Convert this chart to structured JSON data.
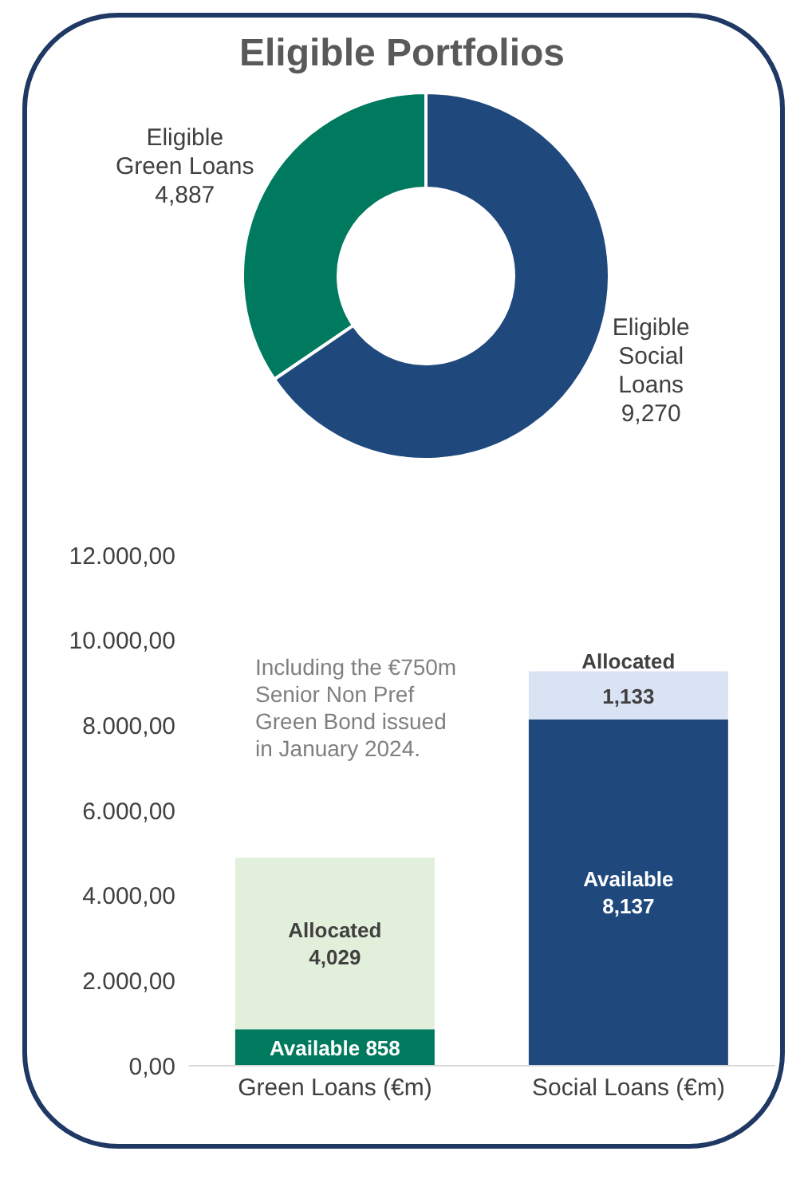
{
  "chart_data": [
    {
      "type": "donut",
      "title": "Eligible Portfolios",
      "categories": [
        "Eligible Green Loans",
        "Eligible Social Loans"
      ],
      "values": [
        4887,
        9270
      ],
      "colors": [
        "#007a5e",
        "#1f497d"
      ],
      "value_labels": [
        "4,887",
        "9,270"
      ],
      "legend": false
    },
    {
      "type": "bar",
      "stacked": true,
      "categories": [
        "Green Loans (€m)",
        "Social Loans (€m)"
      ],
      "series": [
        {
          "name": "Available",
          "colors": [
            "#007a5e",
            "#1f497d"
          ],
          "values": [
            858,
            8137
          ],
          "value_labels": [
            "858",
            "8,137"
          ]
        },
        {
          "name": "Allocated",
          "colors": [
            "#e2efda",
            "#dae3f3"
          ],
          "values": [
            4029,
            1133
          ],
          "value_labels": [
            "4,029",
            "1,133"
          ]
        }
      ],
      "ylim": [
        0,
        12000
      ],
      "yticks": [
        {
          "value": 0,
          "label": "0,00"
        },
        {
          "value": 2000,
          "label": "2.000,00"
        },
        {
          "value": 4000,
          "label": "4.000,00"
        },
        {
          "value": 6000,
          "label": "6.000,00"
        },
        {
          "value": 8000,
          "label": "8.000,00"
        },
        {
          "value": 10000,
          "label": "10.000,00"
        },
        {
          "value": 12000,
          "label": "12.000,00"
        }
      ],
      "grid": false,
      "legend": false,
      "annotations": [
        "Including the €750m Senior Non Pref Green Bond issued in January 2024."
      ]
    }
  ]
}
